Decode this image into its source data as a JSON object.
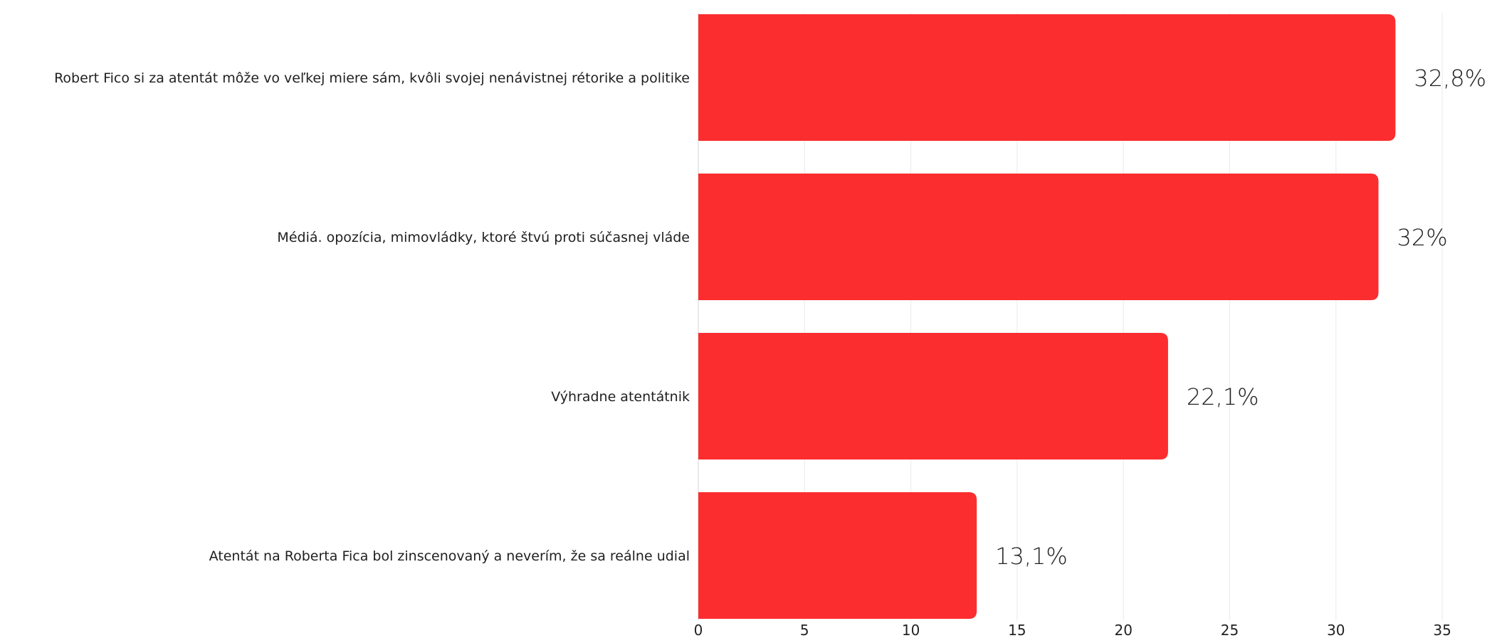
{
  "chart_data": {
    "type": "bar",
    "orientation": "horizontal",
    "title": "",
    "xlabel": "",
    "ylabel": "",
    "categories": [
      "Robert Fico si za atentát môže vo veľkej miere sám, kvôli svojej nenávistnej rétorike a politike",
      "Médiá. opozícia, mimovládky, ktoré štvú proti súčasnej vláde",
      "Výhradne atentátnik",
      "Atentát na Roberta Fica bol zinscenovaný a neverím, že sa reálne udial"
    ],
    "values": [
      32.8,
      32,
      22.1,
      13.1
    ],
    "value_labels": [
      "32,8%",
      "32%",
      "22,1%",
      "13,1%"
    ],
    "xlim": [
      0,
      35
    ],
    "xticks": [
      0,
      5,
      10,
      15,
      20,
      25,
      30,
      35
    ],
    "xtick_labels": [
      "0",
      "5",
      "10",
      "15",
      "20",
      "25",
      "30",
      "35"
    ],
    "grid": true,
    "legend": "none",
    "bar_color": "#fc2d2f"
  }
}
